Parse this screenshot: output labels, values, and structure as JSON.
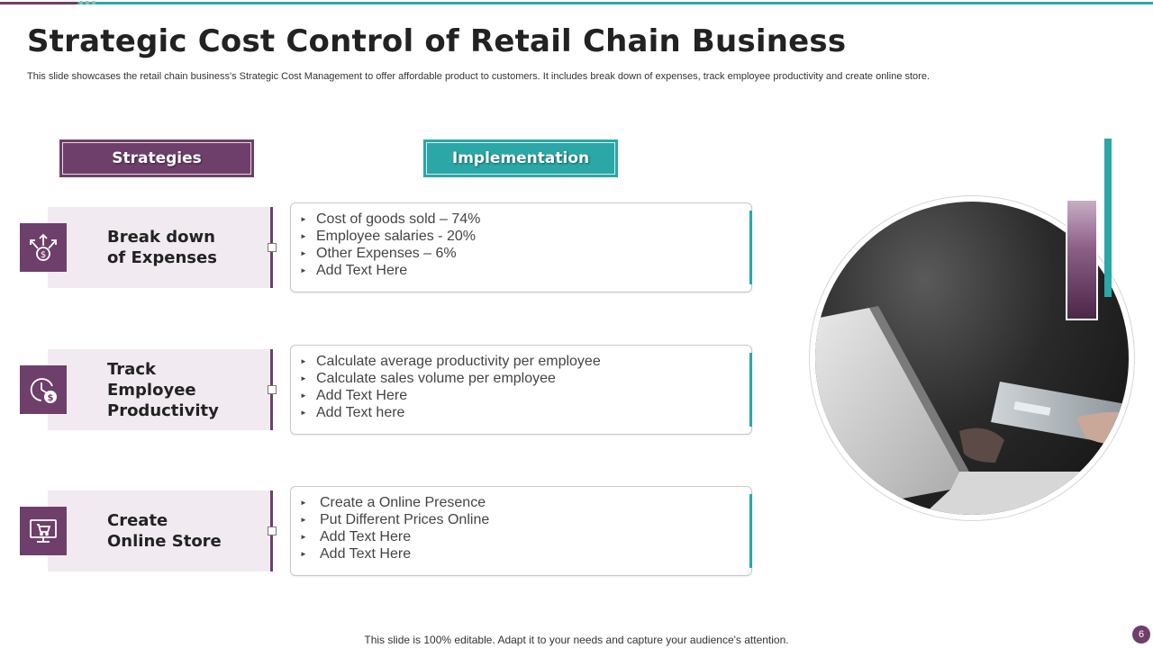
{
  "slide": {
    "title": "Strategic Cost Control of Retail Chain Business",
    "subtitle": "This slide showcases the retail chain business's Strategic Cost Management to offer affordable product to customers. It includes break down of expenses, track employee productivity and create online store.",
    "footer": "This slide is 100% editable. Adapt it to your needs and capture your audience's attention.",
    "page_number": "6"
  },
  "headers": {
    "strategies": "Strategies",
    "implementation": "Implementation"
  },
  "rows": [
    {
      "icon": "expenses-breakdown-icon",
      "label_line1": "Break down",
      "label_line2": "of Expenses",
      "items": [
        "Cost of goods sold – 74%",
        "Employee salaries - 20%",
        "Other Expenses – 6%",
        "Add Text Here"
      ]
    },
    {
      "icon": "productivity-clock-icon",
      "label_line1": "Track",
      "label_line2": "Employee Productivity",
      "items": [
        "Calculate average productivity per employee",
        "Calculate sales volume per employee",
        "Add Text Here",
        "Add Text here"
      ]
    },
    {
      "icon": "online-store-monitor-icon",
      "label_line1": "Create",
      "label_line2": "Online Store",
      "items": [
        "Create a Online Presence",
        "Put Different Prices Online",
        "Add Text Here",
        "Add Text Here"
      ]
    }
  ],
  "colors": {
    "purple": "#6e3f6a",
    "teal": "#2ba7a7",
    "light_purple": "#f2eaf1"
  }
}
